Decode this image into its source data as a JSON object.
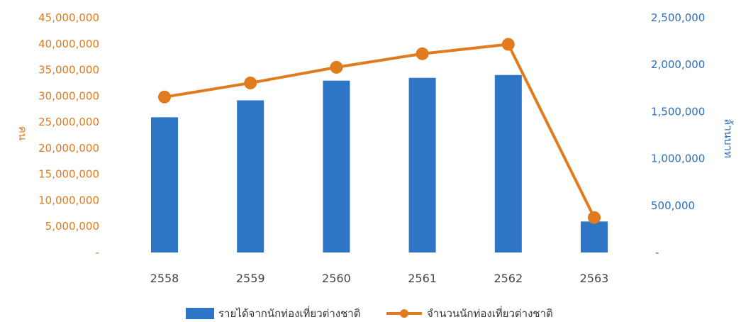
{
  "chart_data": {
    "type": "bar",
    "categories": [
      "2558",
      "2559",
      "2560",
      "2561",
      "2562",
      "2563"
    ],
    "series": [
      {
        "name": "รายได้จากนักท่องเที่ยวต่างชาติ",
        "chart": "bar",
        "axis": "right",
        "color": "#2E75C6",
        "values": [
          1440000,
          1620000,
          1830000,
          1860000,
          1890000,
          330000
        ]
      },
      {
        "name": "จำนวนนักท่องเที่ยวต่างชาติ",
        "chart": "line",
        "axis": "left",
        "color": "#E07B1E",
        "values": [
          29800000,
          32500000,
          35500000,
          38100000,
          39900000,
          6700000
        ]
      }
    ],
    "ylabel_left": "คน",
    "ylabel_right": "ล้านบาท",
    "ylim_left": [
      0,
      45000000
    ],
    "ylim_right": [
      0,
      2500000
    ],
    "yticks_left": [
      "-",
      "5,000,000",
      "10,000,000",
      "15,000,000",
      "20,000,000",
      "25,000,000",
      "30,000,000",
      "35,000,000",
      "40,000,000",
      "45,000,000"
    ],
    "yticks_right": [
      "-",
      "500,000",
      "1,000,000",
      "1,500,000",
      "2,000,000",
      "2,500,000"
    ],
    "legend_position": "bottom",
    "grid": false
  }
}
